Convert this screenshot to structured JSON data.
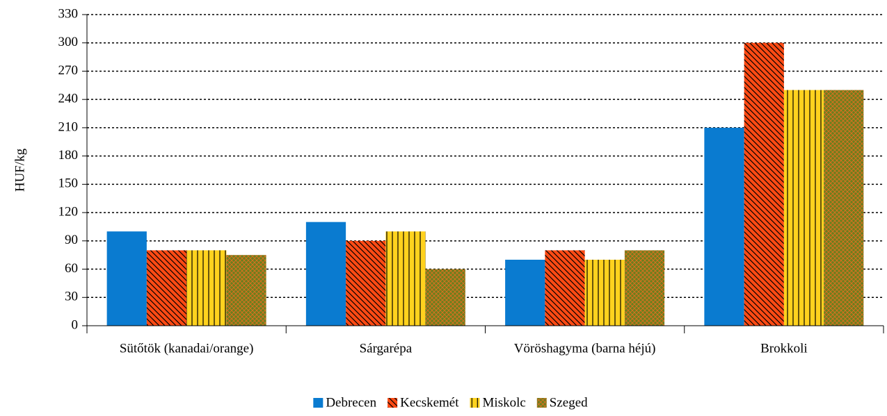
{
  "chart_data": {
    "type": "bar",
    "y_label": "HUF/kg",
    "categories": [
      "Sütőtök (kanadai/orange)",
      "Sárgarépa",
      "Vöröshagyma (barna héjú)",
      "Brokkoli"
    ],
    "series": [
      {
        "name": "Debrecen",
        "color": "#0a7bd0",
        "pattern": "solid",
        "values": [
          100,
          110,
          70,
          210
        ]
      },
      {
        "name": "Kecskemét",
        "color": "#ff4a14",
        "pattern": "diagonal",
        "values": [
          80,
          90,
          80,
          300
        ]
      },
      {
        "name": "Miskolc",
        "color": "#ffd21e",
        "pattern": "vertical",
        "values": [
          80,
          100,
          70,
          250
        ]
      },
      {
        "name": "Szeged",
        "color": "#6b7f1e",
        "pattern": "crosshatch",
        "values": [
          75,
          60,
          80,
          250
        ]
      }
    ],
    "ylim": [
      0,
      330
    ],
    "yticks": [
      0,
      30,
      60,
      90,
      120,
      150,
      180,
      210,
      240,
      270,
      300,
      330
    ],
    "grid": true,
    "legend": "bottom"
  }
}
